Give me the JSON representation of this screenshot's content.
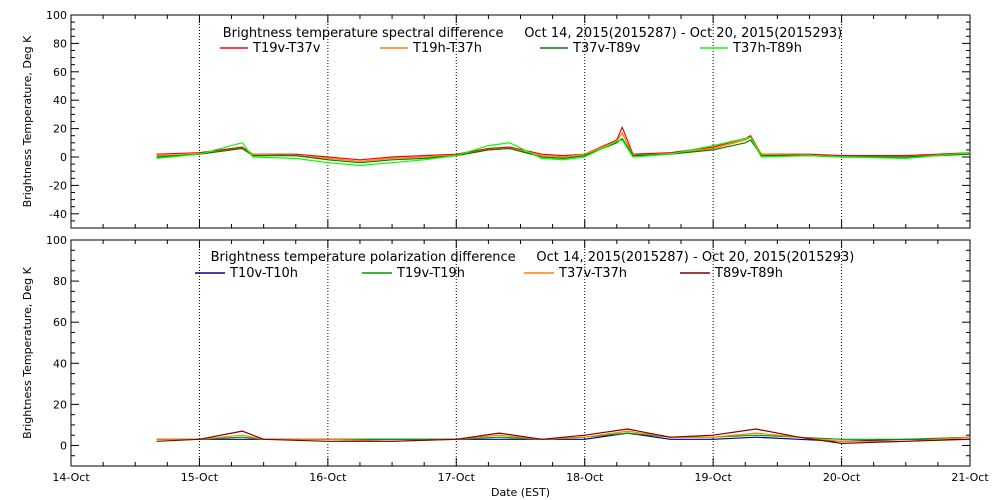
{
  "chart_data": [
    {
      "type": "line",
      "title": "Brightness temperature spectral difference     Oct 14, 2015(2015287) - Oct 20, 2015(2015293)",
      "ylabel": "Brightness Temperature, Deg K",
      "xlabel": "",
      "ylim": [
        -50,
        100
      ],
      "yticks": [
        -40,
        -20,
        0,
        20,
        40,
        60,
        80,
        100
      ],
      "xlim": [
        "2015-10-14",
        "2015-10-21"
      ],
      "xticks": [
        "14-Oct",
        "15-Oct",
        "16-Oct",
        "17-Oct",
        "18-Oct",
        "19-Oct",
        "20-Oct",
        "21-Oct"
      ],
      "show_xtick_labels": false,
      "grid": "vertical dotted at each day",
      "legend_position": "top",
      "series": [
        {
          "name": "T19v-T37v",
          "color": "#ff0000",
          "x": [
            "2015-10-14T16:00",
            "2015-10-15T00:00",
            "2015-10-15T06:00",
            "2015-10-15T08:00",
            "2015-10-15T10:00",
            "2015-10-15T18:00",
            "2015-10-16T00:00",
            "2015-10-16T06:00",
            "2015-10-16T12:00",
            "2015-10-16T18:00",
            "2015-10-17T00:00",
            "2015-10-17T06:00",
            "2015-10-17T10:00",
            "2015-10-17T16:00",
            "2015-10-17T20:00",
            "2015-10-18T00:00",
            "2015-10-18T06:00",
            "2015-10-18T07:00",
            "2015-10-18T09:00",
            "2015-10-18T16:00",
            "2015-10-19T00:00",
            "2015-10-19T06:00",
            "2015-10-19T07:00",
            "2015-10-19T09:00",
            "2015-10-19T18:00",
            "2015-10-20T00:00",
            "2015-10-20T12:00",
            "2015-10-20T18:00",
            "2015-10-21T00:00"
          ],
          "y": [
            2,
            3,
            6,
            7,
            2,
            2,
            0,
            -2,
            0,
            1,
            2,
            6,
            7,
            2,
            1,
            2,
            12,
            21,
            2,
            3,
            7,
            13,
            15,
            2,
            2,
            1,
            1,
            2,
            3
          ]
        },
        {
          "name": "T19h-T37h",
          "color": "#ff7f00",
          "x": [
            "2015-10-14T16:00",
            "2015-10-15T00:00",
            "2015-10-15T06:00",
            "2015-10-15T08:00",
            "2015-10-15T10:00",
            "2015-10-15T18:00",
            "2015-10-16T00:00",
            "2015-10-16T06:00",
            "2015-10-16T12:00",
            "2015-10-16T18:00",
            "2015-10-17T00:00",
            "2015-10-17T06:00",
            "2015-10-17T10:00",
            "2015-10-17T16:00",
            "2015-10-17T20:00",
            "2015-10-18T00:00",
            "2015-10-18T06:00",
            "2015-10-18T07:00",
            "2015-10-18T09:00",
            "2015-10-18T16:00",
            "2015-10-19T00:00",
            "2015-10-19T06:00",
            "2015-10-19T07:00",
            "2015-10-19T09:00",
            "2015-10-19T18:00",
            "2015-10-20T00:00",
            "2015-10-20T12:00",
            "2015-10-20T18:00",
            "2015-10-21T00:00"
          ],
          "y": [
            1,
            2,
            5,
            6,
            2,
            1,
            -1,
            -3,
            -1,
            0,
            1,
            5,
            6,
            1,
            0,
            2,
            11,
            17,
            1,
            2,
            6,
            12,
            14,
            2,
            1,
            0,
            0,
            1,
            2
          ]
        },
        {
          "name": "T37v-T89v",
          "color": "#007f00",
          "x": [
            "2015-10-14T16:00",
            "2015-10-15T00:00",
            "2015-10-15T06:00",
            "2015-10-15T08:00",
            "2015-10-15T10:00",
            "2015-10-15T18:00",
            "2015-10-16T00:00",
            "2015-10-16T06:00",
            "2015-10-16T12:00",
            "2015-10-16T18:00",
            "2015-10-17T00:00",
            "2015-10-17T06:00",
            "2015-10-17T10:00",
            "2015-10-17T16:00",
            "2015-10-17T20:00",
            "2015-10-18T00:00",
            "2015-10-18T06:00",
            "2015-10-18T07:00",
            "2015-10-18T09:00",
            "2015-10-18T16:00",
            "2015-10-19T00:00",
            "2015-10-19T06:00",
            "2015-10-19T07:00",
            "2015-10-19T09:00",
            "2015-10-19T18:00",
            "2015-10-20T00:00",
            "2015-10-20T12:00",
            "2015-10-20T18:00",
            "2015-10-21T00:00"
          ],
          "y": [
            0,
            2,
            5,
            6,
            1,
            1,
            -2,
            -4,
            -2,
            -1,
            1,
            5,
            6,
            0,
            -1,
            1,
            10,
            13,
            1,
            2,
            5,
            10,
            12,
            1,
            1,
            0,
            0,
            1,
            2
          ]
        },
        {
          "name": "T37h-T89h",
          "color": "#00ff00",
          "x": [
            "2015-10-14T16:00",
            "2015-10-15T00:00",
            "2015-10-15T06:00",
            "2015-10-15T08:00",
            "2015-10-15T10:00",
            "2015-10-15T18:00",
            "2015-10-16T00:00",
            "2015-10-16T06:00",
            "2015-10-16T12:00",
            "2015-10-16T18:00",
            "2015-10-17T00:00",
            "2015-10-17T06:00",
            "2015-10-17T10:00",
            "2015-10-17T16:00",
            "2015-10-17T20:00",
            "2015-10-18T00:00",
            "2015-10-18T06:00",
            "2015-10-18T07:00",
            "2015-10-18T09:00",
            "2015-10-18T16:00",
            "2015-10-19T00:00",
            "2015-10-19T06:00",
            "2015-10-19T07:00",
            "2015-10-19T09:00",
            "2015-10-19T18:00",
            "2015-10-20T00:00",
            "2015-10-20T12:00",
            "2015-10-20T18:00",
            "2015-10-21T00:00"
          ],
          "y": [
            -1,
            2,
            8,
            10,
            0,
            -1,
            -4,
            -6,
            -4,
            -2,
            1,
            8,
            10,
            -1,
            -2,
            0,
            11,
            12,
            0,
            2,
            8,
            13,
            14,
            0,
            1,
            0,
            -1,
            1,
            3
          ]
        }
      ]
    },
    {
      "type": "line",
      "title": "Brightness temperature polarization difference     Oct 14, 2015(2015287) - Oct 20, 2015(2015293)",
      "ylabel": "Brightness Temperature, Deg K",
      "xlabel": "Date (EST)",
      "ylim": [
        -10,
        100
      ],
      "yticks": [
        0,
        20,
        40,
        60,
        80,
        100
      ],
      "xlim": [
        "2015-10-14",
        "2015-10-21"
      ],
      "xticks": [
        "14-Oct",
        "15-Oct",
        "16-Oct",
        "17-Oct",
        "18-Oct",
        "19-Oct",
        "20-Oct",
        "21-Oct"
      ],
      "show_xtick_labels": true,
      "grid": "vertical dotted at each day",
      "legend_position": "top",
      "series": [
        {
          "name": "T10v-T10h",
          "color": "#00008b",
          "x": [
            "2015-10-14T16:00",
            "2015-10-15T00:00",
            "2015-10-15T08:00",
            "2015-10-15T12:00",
            "2015-10-16T00:00",
            "2015-10-16T12:00",
            "2015-10-17T00:00",
            "2015-10-17T08:00",
            "2015-10-17T16:00",
            "2015-10-18T00:00",
            "2015-10-18T08:00",
            "2015-10-18T16:00",
            "2015-10-19T00:00",
            "2015-10-19T08:00",
            "2015-10-19T16:00",
            "2015-10-20T00:00",
            "2015-10-20T12:00",
            "2015-10-21T00:00"
          ],
          "y": [
            3,
            3,
            3,
            3,
            3,
            3,
            3,
            3,
            3,
            3,
            6,
            3,
            3,
            4,
            3,
            2,
            3,
            3
          ]
        },
        {
          "name": "T19v-T19h",
          "color": "#009900",
          "x": [
            "2015-10-14T16:00",
            "2015-10-15T00:00",
            "2015-10-15T08:00",
            "2015-10-15T12:00",
            "2015-10-16T00:00",
            "2015-10-16T12:00",
            "2015-10-17T00:00",
            "2015-10-17T08:00",
            "2015-10-17T16:00",
            "2015-10-18T00:00",
            "2015-10-18T08:00",
            "2015-10-18T16:00",
            "2015-10-19T00:00",
            "2015-10-19T08:00",
            "2015-10-19T16:00",
            "2015-10-20T00:00",
            "2015-10-20T12:00",
            "2015-10-21T00:00"
          ],
          "y": [
            3,
            3,
            4,
            3,
            3,
            3,
            3,
            4,
            3,
            4,
            6,
            4,
            4,
            5,
            4,
            3,
            3,
            4
          ]
        },
        {
          "name": "T37v-T37h",
          "color": "#ff8000",
          "x": [
            "2015-10-14T16:00",
            "2015-10-15T00:00",
            "2015-10-15T08:00",
            "2015-10-15T12:00",
            "2015-10-16T00:00",
            "2015-10-16T12:00",
            "2015-10-17T00:00",
            "2015-10-17T08:00",
            "2015-10-17T16:00",
            "2015-10-18T00:00",
            "2015-10-18T08:00",
            "2015-10-18T16:00",
            "2015-10-19T00:00",
            "2015-10-19T08:00",
            "2015-10-19T16:00",
            "2015-10-20T00:00",
            "2015-10-20T12:00",
            "2015-10-21T00:00"
          ],
          "y": [
            3,
            3,
            5,
            3,
            3,
            2,
            3,
            5,
            3,
            4,
            7,
            4,
            4,
            6,
            4,
            2,
            2,
            4
          ]
        },
        {
          "name": "T89v-T89h",
          "color": "#7f0000",
          "x": [
            "2015-10-14T16:00",
            "2015-10-15T00:00",
            "2015-10-15T08:00",
            "2015-10-15T12:00",
            "2015-10-16T00:00",
            "2015-10-16T12:00",
            "2015-10-17T00:00",
            "2015-10-17T08:00",
            "2015-10-17T16:00",
            "2015-10-18T00:00",
            "2015-10-18T08:00",
            "2015-10-18T16:00",
            "2015-10-19T00:00",
            "2015-10-19T08:00",
            "2015-10-19T16:00",
            "2015-10-20T00:00",
            "2015-10-20T12:00",
            "2015-10-21T00:00"
          ],
          "y": [
            2,
            3,
            7,
            3,
            2,
            2,
            3,
            6,
            3,
            5,
            8,
            4,
            5,
            8,
            4,
            1,
            2,
            3
          ]
        }
      ]
    }
  ]
}
